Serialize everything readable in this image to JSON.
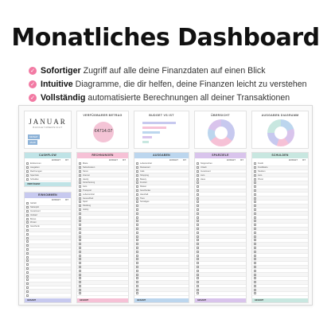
{
  "title": "Monatliches Dashboard",
  "features": [
    {
      "bold": "Sofortiger",
      "rest": "Zugriff auf alle deine Finanzdaten auf einen Blick"
    },
    {
      "bold": "Intuitive",
      "rest": "Diagramme, die dir helfen, deine Finanzen leicht zu verstehen"
    },
    {
      "bold": "Vollständig",
      "rest": "automatisierte Berechnungen all deiner Transaktionen"
    }
  ],
  "colors": {
    "check": "#f27aa3",
    "cashflow": "#bfe3e6",
    "income": "#c7c9ef",
    "spending": "#f6c1d6",
    "savings": "#bcd6ee",
    "subscriptions": "#d9c4ec",
    "debts": "#c8e7e0"
  },
  "sheet": {
    "month": "JANUAR",
    "month_sub": "BUDGETUBERSICHT",
    "start_label": "MONAT",
    "year_label": "JAHR",
    "available": {
      "title": "VERFÜGBARER BETRAG",
      "value": "€4714.07"
    },
    "budget_chart_title": "BUDGET VS IST",
    "overview_title": "ÜBERSICHT",
    "spending_overview_title": "AUSGABEN DIAGRAMM",
    "cashflow": {
      "title": "CASHFLOW",
      "col1": "BUDGET",
      "col2": "IST",
      "rows": [
        "Einkommen",
        "Ausgaben",
        "Rechnungen",
        "Sparziele",
        "Schulden",
        "Abos"
      ],
      "foot": "VERFÜGBAR"
    },
    "income": {
      "title": "EINKOMMEN",
      "col1": "BUDGET",
      "col2": "IST",
      "rows": [
        "Gehalt",
        "Nebenjob",
        "Investment",
        "Verkauf",
        "Bonus",
        "Zinsen",
        "Geschenk"
      ],
      "foot": "GESAMT"
    },
    "spending": {
      "title": "RECHNUNGEN",
      "col1": "BUDGET",
      "col2": "IST",
      "rows": [
        "Miete",
        "Nebenkosten",
        "Strom",
        "Internet",
        "Handy",
        "Versicherung",
        "Auto",
        "Transport",
        "Lebensmittel",
        "Gesundheit",
        "Sport",
        "Kleidung",
        "Hobby"
      ],
      "foot": "GESAMT"
    },
    "savings": {
      "title": "AUSGABEN",
      "col1": "BUDGET",
      "col2": "IST",
      "rows": [
        "Lebensmittel",
        "Restaurant",
        "Café",
        "Shopping",
        "Beauty",
        "Freizeit",
        "Reisen",
        "Geschenke",
        "Haushalt",
        "Tiere",
        "Sonstiges"
      ],
      "foot": "GESAMT"
    },
    "subscriptions": {
      "title": "SPARZIELE",
      "col1": "BUDGET",
      "col2": "IST",
      "rows": [
        "Notgroschen",
        "Urlaub",
        "Investment",
        "Auto",
        "Haus"
      ],
      "foot": "GESAMT"
    },
    "debts": {
      "title": "SCHULDEN",
      "col1": "BUDGET",
      "col2": "IST",
      "rows": [
        "Kredit",
        "Kreditkarte",
        "Studium",
        "Auto",
        "Privat"
      ],
      "foot": "GESAMT"
    }
  }
}
